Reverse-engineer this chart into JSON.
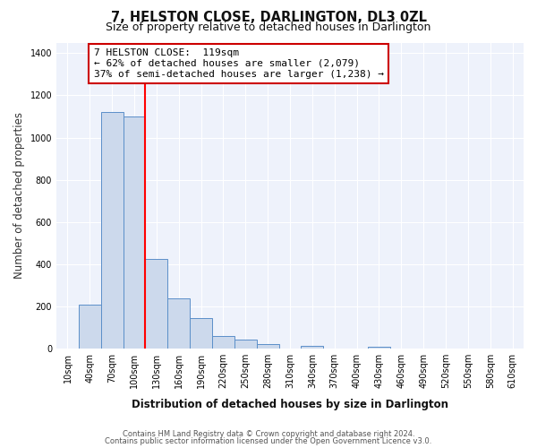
{
  "title": "7, HELSTON CLOSE, DARLINGTON, DL3 0ZL",
  "subtitle": "Size of property relative to detached houses in Darlington",
  "xlabel": "Distribution of detached houses by size in Darlington",
  "ylabel": "Number of detached properties",
  "bin_labels": [
    "10sqm",
    "40sqm",
    "70sqm",
    "100sqm",
    "130sqm",
    "160sqm",
    "190sqm",
    "220sqm",
    "250sqm",
    "280sqm",
    "310sqm",
    "340sqm",
    "370sqm",
    "400sqm",
    "430sqm",
    "460sqm",
    "490sqm",
    "520sqm",
    "550sqm",
    "580sqm",
    "610sqm"
  ],
  "bar_heights": [
    0,
    210,
    1120,
    1100,
    425,
    240,
    145,
    60,
    45,
    20,
    0,
    15,
    0,
    0,
    10,
    0,
    0,
    0,
    0,
    0,
    0
  ],
  "bar_color": "#ccd9ec",
  "bar_edge_color": "#5b8fc9",
  "annotation_title": "7 HELSTON CLOSE:  119sqm",
  "annotation_line1": "← 62% of detached houses are smaller (2,079)",
  "annotation_line2": "37% of semi-detached houses are larger (1,238) →",
  "annotation_box_color": "#ffffff",
  "annotation_box_edge": "#cc0000",
  "ylim": [
    0,
    1450
  ],
  "yticks": [
    0,
    200,
    400,
    600,
    800,
    1000,
    1200,
    1400
  ],
  "footer_line1": "Contains HM Land Registry data © Crown copyright and database right 2024.",
  "footer_line2": "Contains public sector information licensed under the Open Government Licence v3.0.",
  "bg_color": "#ffffff",
  "plot_bg_color": "#eef2fb",
  "grid_color": "#ffffff",
  "title_fontsize": 10.5,
  "subtitle_fontsize": 9,
  "axis_label_fontsize": 8.5,
  "tick_fontsize": 7,
  "footer_fontsize": 6,
  "annotation_fontsize": 8
}
